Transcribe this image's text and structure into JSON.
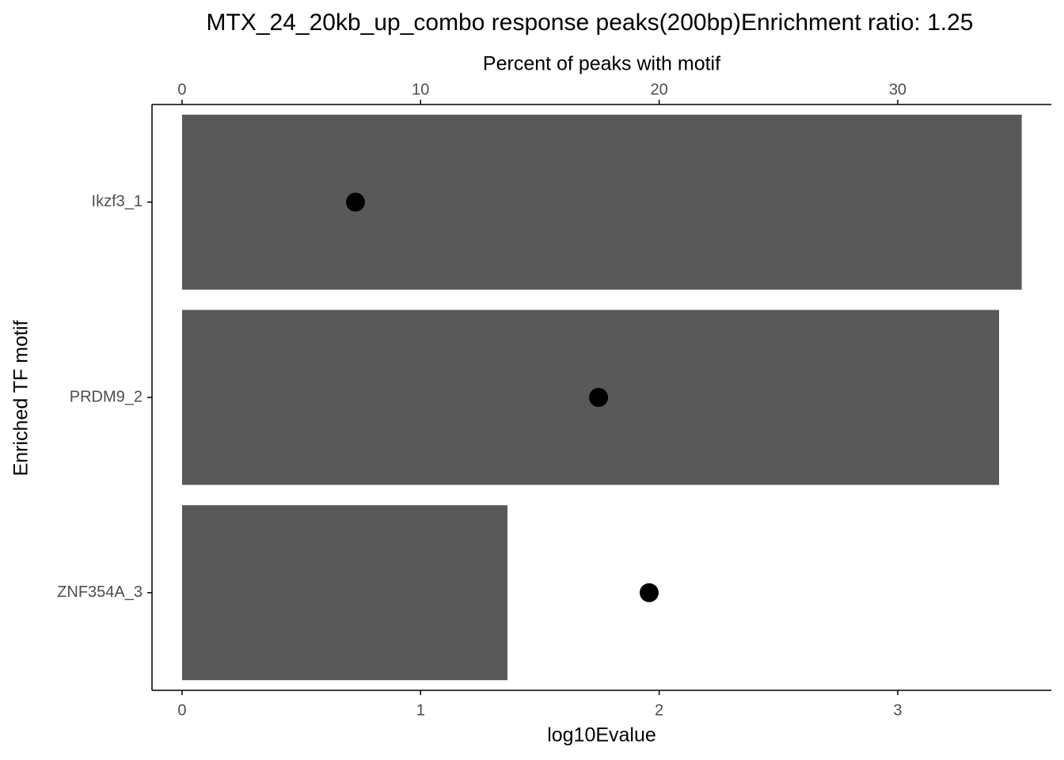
{
  "chart_data": {
    "type": "bar",
    "title": "MTX_24_20kb_up_combo response peaks(200bp)Enrichment ratio: 1.25",
    "xlabel": "log10Evalue",
    "x2label": "Percent of peaks with motif",
    "ylabel": "Enriched TF motif",
    "categories": [
      "Ikzf3_1",
      "PRDM9_2",
      "ZNF354A_3"
    ],
    "series": [
      {
        "type": "bar",
        "color": "#595959",
        "values": [
          3.52,
          3.425,
          1.364
        ]
      },
      {
        "type": "point",
        "axis": "x2",
        "color": "#000000",
        "values": [
          7.27,
          17.46,
          19.58
        ]
      }
    ],
    "xlim": [
      -0.126,
      3.644
    ],
    "xticks": [
      0,
      1,
      2,
      3
    ],
    "x2lim": [
      -1.26,
      36.44
    ],
    "x2ticks": [
      0,
      10,
      20,
      30
    ]
  }
}
